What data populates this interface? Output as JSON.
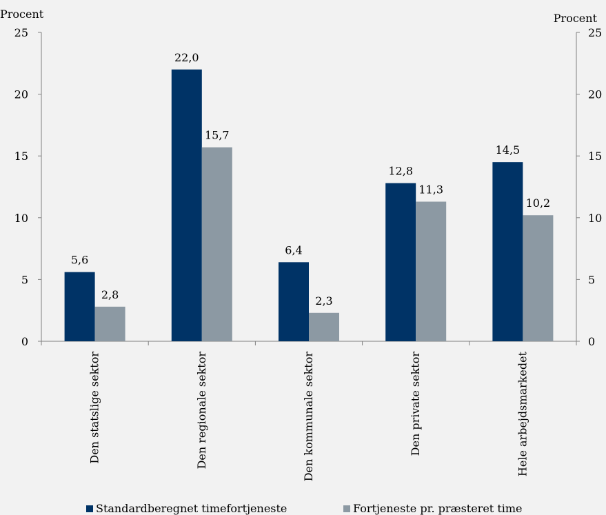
{
  "chart_data": {
    "type": "bar",
    "categories": [
      "Den statslige sektor",
      "Den regionale sektor",
      "Den kommunale sektor",
      "Den private sektor",
      "Hele arbejdsmarkedet"
    ],
    "series": [
      {
        "name": "Standardberegnet timefortjeneste",
        "values": [
          5.6,
          22.0,
          6.4,
          12.8,
          14.5
        ],
        "labels": [
          "5,6",
          "22,0",
          "6,4",
          "12,8",
          "14,5"
        ],
        "color": "#003366"
      },
      {
        "name": "Fortjeneste pr. præsteret time",
        "values": [
          2.8,
          15.7,
          2.3,
          11.3,
          10.2
        ],
        "labels": [
          "2,8",
          "15,7",
          "2,3",
          "11,3",
          "10,2"
        ],
        "color": "#8c99a3"
      }
    ],
    "y_left_label": "Procent",
    "y_right_label": "Procent",
    "ylim": [
      0,
      25
    ],
    "yticks": [
      0,
      5,
      10,
      15,
      20,
      25
    ],
    "grid": false,
    "legend_position": "bottom"
  }
}
